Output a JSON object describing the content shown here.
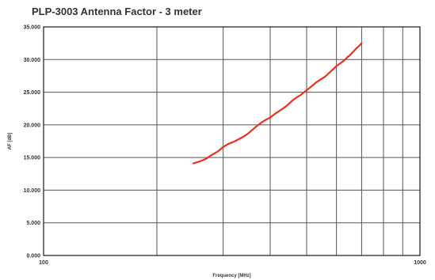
{
  "chart_data": {
    "type": "line",
    "title": "PLP-3003 Antenna Factor - 3 meter",
    "xlabel": "Frequency [MHz]",
    "ylabel": "AF [dB]",
    "x_scale": "log",
    "xlim": [
      100,
      1000
    ],
    "ylim": [
      0,
      35
    ],
    "grid": true,
    "x_tick_labels": [
      "100",
      "1000"
    ],
    "y_tick_labels": [
      "0.000",
      "5.000",
      "10.000",
      "15.000",
      "20.000",
      "25.000",
      "30.000",
      "35.000"
    ],
    "series": [
      {
        "color": "#e8321e",
        "x": [
          250,
          260,
          270,
          280,
          290,
          300,
          310,
          320,
          330,
          340,
          350,
          360,
          370,
          380,
          390,
          400,
          410,
          420,
          430,
          440,
          450,
          460,
          470,
          480,
          490,
          500,
          510,
          520,
          530,
          540,
          550,
          560,
          570,
          580,
          590,
          600,
          610,
          620,
          630,
          640,
          650,
          660,
          670,
          680,
          690,
          700
        ],
        "y": [
          14.1,
          14.4,
          14.8,
          15.4,
          15.9,
          16.6,
          17.1,
          17.4,
          17.8,
          18.2,
          18.7,
          19.3,
          19.9,
          20.4,
          20.8,
          21.1,
          21.6,
          22.0,
          22.4,
          22.8,
          23.3,
          23.8,
          24.2,
          24.5,
          24.9,
          25.3,
          25.7,
          26.1,
          26.5,
          26.8,
          27.1,
          27.4,
          27.8,
          28.2,
          28.6,
          29.0,
          29.3,
          29.6,
          29.9,
          30.3,
          30.6,
          31.0,
          31.4,
          31.8,
          32.1,
          32.5
        ]
      }
    ]
  }
}
